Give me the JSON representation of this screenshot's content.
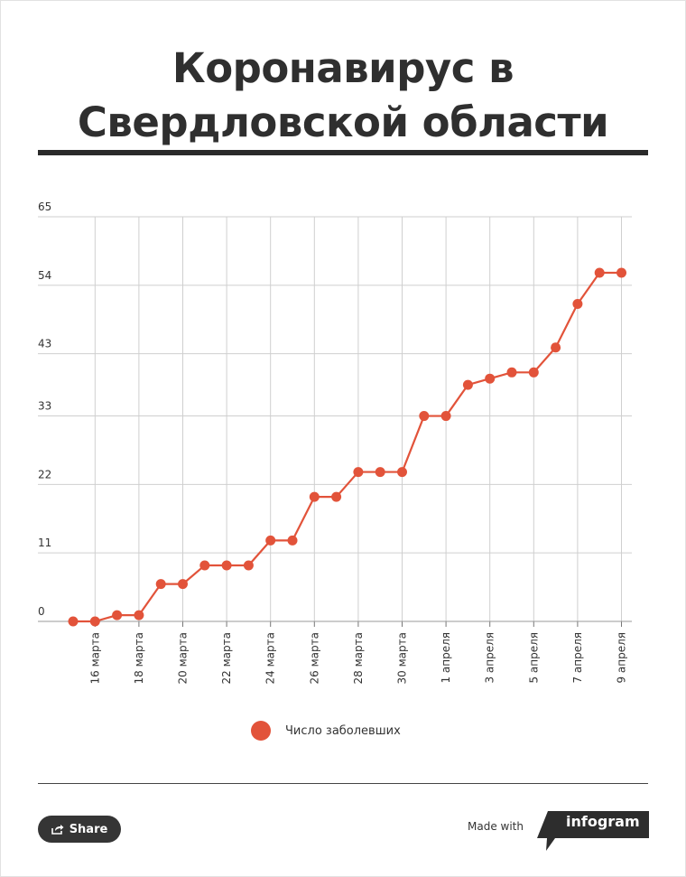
{
  "header": {
    "title_line1": "Коронавирус в",
    "title_line2": "Свердловской области"
  },
  "chart_data": {
    "type": "line",
    "series": [
      {
        "name": "Число заболевших",
        "color": "#e2533a",
        "values": [
          0,
          0,
          1,
          1,
          6,
          6,
          9,
          9,
          9,
          13,
          13,
          20,
          20,
          24,
          24,
          24,
          33,
          33,
          38,
          39,
          40,
          40,
          44,
          51,
          56,
          56
        ]
      }
    ],
    "x_tick_labels": [
      "16 марта",
      "18 марта",
      "20 марта",
      "22 марта",
      "24 марта",
      "26 марта",
      "28 марта",
      "30 марта",
      "1 апреля",
      "3 апреля",
      "5 апреля",
      "7 апреля",
      "9 апреля"
    ],
    "y_ticks": [
      0,
      11,
      22,
      33,
      43,
      54,
      65
    ],
    "ylim": [
      0,
      65
    ],
    "grid": true,
    "legend_position": "bottom"
  },
  "legend": {
    "label": "Число заболевших"
  },
  "footer": {
    "share_label": "Share",
    "made_with": "Made with",
    "brand": "infogram"
  }
}
